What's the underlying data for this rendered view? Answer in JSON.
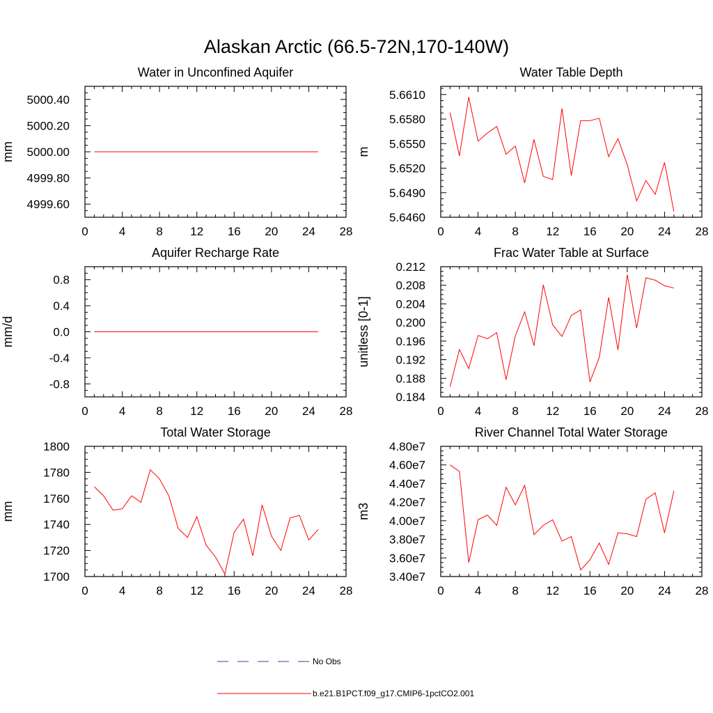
{
  "page_title": "Alaskan Arctic (66.5-72N,170-140W)",
  "colors": {
    "model": "#ff0000",
    "obs": "#3c3caa",
    "axis": "#000000"
  },
  "legend": [
    {
      "label": "No Obs",
      "style": "dashed",
      "color": "#3c3caa"
    },
    {
      "label": "b.e21.B1PCT.f09_g17.CMIP6-1pctCO2.001",
      "style": "solid",
      "color": "#ff0000"
    }
  ],
  "chart_data": [
    {
      "type": "line",
      "title": "Water in Unconfined Aquifer",
      "ylabel": "mm",
      "xlim": [
        0,
        28
      ],
      "xticks": [
        0,
        4,
        8,
        12,
        16,
        20,
        24,
        28
      ],
      "ylim": [
        4999.5,
        5000.5
      ],
      "yticks": [
        4999.6,
        4999.8,
        5000.0,
        5000.2,
        5000.4
      ],
      "ytick_labels": [
        "4999.60",
        "4999.80",
        "5000.00",
        "5000.20",
        "5000.40"
      ],
      "x": [
        1,
        25
      ],
      "series": [
        {
          "values": [
            5000.0,
            5000.0
          ]
        }
      ]
    },
    {
      "type": "line",
      "title": "Water Table Depth",
      "ylabel": "m",
      "xlim": [
        0,
        28
      ],
      "xticks": [
        0,
        4,
        8,
        12,
        16,
        20,
        24,
        28
      ],
      "ylim": [
        5.646,
        5.662
      ],
      "yticks": [
        5.646,
        5.649,
        5.652,
        5.655,
        5.658,
        5.661
      ],
      "ytick_labels": [
        "5.6460",
        "5.6490",
        "5.6520",
        "5.6550",
        "5.6580",
        "5.6610"
      ],
      "x": [
        1,
        2,
        3,
        4,
        5,
        6,
        7,
        8,
        9,
        10,
        11,
        12,
        13,
        14,
        15,
        16,
        17,
        18,
        19,
        20,
        21,
        22,
        23,
        24,
        25
      ],
      "series": [
        {
          "values": [
            5.6588,
            5.6535,
            5.6607,
            5.6553,
            5.6563,
            5.6571,
            5.6537,
            5.6547,
            5.6502,
            5.6555,
            5.651,
            5.6506,
            5.6593,
            5.6511,
            5.6578,
            5.6578,
            5.6581,
            5.6534,
            5.6556,
            5.6524,
            5.648,
            5.6505,
            5.6488,
            5.6527,
            5.6467
          ]
        }
      ]
    },
    {
      "type": "line",
      "title": "Aquifer Recharge Rate",
      "ylabel": "mm/d",
      "xlim": [
        0,
        28
      ],
      "xticks": [
        0,
        4,
        8,
        12,
        16,
        20,
        24,
        28
      ],
      "ylim": [
        -1.0,
        1.0
      ],
      "yticks": [
        -0.8,
        -0.4,
        0.0,
        0.4,
        0.8
      ],
      "ytick_labels": [
        "-0.8",
        "-0.4",
        "0.0",
        "0.4",
        "0.8"
      ],
      "x": [
        1,
        25
      ],
      "series": [
        {
          "values": [
            0.0,
            0.0
          ]
        }
      ]
    },
    {
      "type": "line",
      "title": "Frac Water Table at Surface",
      "ylabel": "unitless [0-1]",
      "xlim": [
        0,
        28
      ],
      "xticks": [
        0,
        4,
        8,
        12,
        16,
        20,
        24,
        28
      ],
      "ylim": [
        0.184,
        0.212
      ],
      "yticks": [
        0.184,
        0.188,
        0.192,
        0.196,
        0.2,
        0.204,
        0.208,
        0.212
      ],
      "ytick_labels": [
        "0.184",
        "0.188",
        "0.192",
        "0.196",
        "0.200",
        "0.204",
        "0.208",
        "0.212"
      ],
      "x": [
        1,
        2,
        3,
        4,
        5,
        6,
        7,
        8,
        9,
        10,
        11,
        12,
        13,
        14,
        15,
        16,
        17,
        18,
        19,
        20,
        21,
        22,
        23,
        24,
        25
      ],
      "series": [
        {
          "values": [
            0.1862,
            0.1942,
            0.1901,
            0.1972,
            0.1965,
            0.1978,
            0.1877,
            0.1971,
            0.2023,
            0.195,
            0.2081,
            0.1995,
            0.197,
            0.2015,
            0.2027,
            0.1872,
            0.1925,
            0.2054,
            0.1941,
            0.2103,
            0.1988,
            0.2096,
            0.2091,
            0.2079,
            0.2074
          ]
        }
      ]
    },
    {
      "type": "line",
      "title": "Total Water Storage",
      "ylabel": "mm",
      "xlim": [
        0,
        28
      ],
      "xticks": [
        0,
        4,
        8,
        12,
        16,
        20,
        24,
        28
      ],
      "ylim": [
        1700,
        1800
      ],
      "yticks": [
        1700,
        1720,
        1740,
        1760,
        1780,
        1800
      ],
      "ytick_labels": [
        "1700",
        "1720",
        "1740",
        "1760",
        "1780",
        "1800"
      ],
      "x": [
        1,
        2,
        3,
        4,
        5,
        6,
        7,
        8,
        9,
        10,
        11,
        12,
        13,
        14,
        15,
        16,
        17,
        18,
        19,
        20,
        21,
        22,
        23,
        24,
        25
      ],
      "series": [
        {
          "values": [
            1769,
            1762,
            1751,
            1752,
            1762,
            1757,
            1782,
            1775,
            1762,
            1737,
            1730,
            1746,
            1724,
            1715,
            1702,
            1734,
            1744,
            1716,
            1755,
            1731,
            1720,
            1745,
            1747,
            1728,
            1736
          ]
        }
      ]
    },
    {
      "type": "line",
      "title": "River Channel Total Water Storage",
      "ylabel": "m3",
      "xlim": [
        0,
        28
      ],
      "xticks": [
        0,
        4,
        8,
        12,
        16,
        20,
        24,
        28
      ],
      "ylim": [
        34000000,
        48000000
      ],
      "yticks": [
        34000000,
        36000000,
        38000000,
        40000000,
        42000000,
        44000000,
        46000000,
        48000000
      ],
      "ytick_labels": [
        "3.40e7",
        "3.60e7",
        "3.80e7",
        "4.00e7",
        "4.20e7",
        "4.40e7",
        "4.60e7",
        "4.80e7"
      ],
      "x": [
        1,
        2,
        3,
        4,
        5,
        6,
        7,
        8,
        9,
        10,
        11,
        12,
        13,
        14,
        15,
        16,
        17,
        18,
        19,
        20,
        21,
        22,
        23,
        24,
        25
      ],
      "series": [
        {
          "values": [
            46000000,
            45300000,
            35500000,
            40100000,
            40600000,
            39500000,
            43600000,
            41700000,
            43800000,
            38500000,
            39500000,
            40100000,
            37800000,
            38300000,
            34700000,
            35800000,
            37600000,
            35300000,
            38700000,
            38600000,
            38300000,
            42300000,
            43000000,
            38700000,
            43200000
          ]
        }
      ]
    }
  ]
}
